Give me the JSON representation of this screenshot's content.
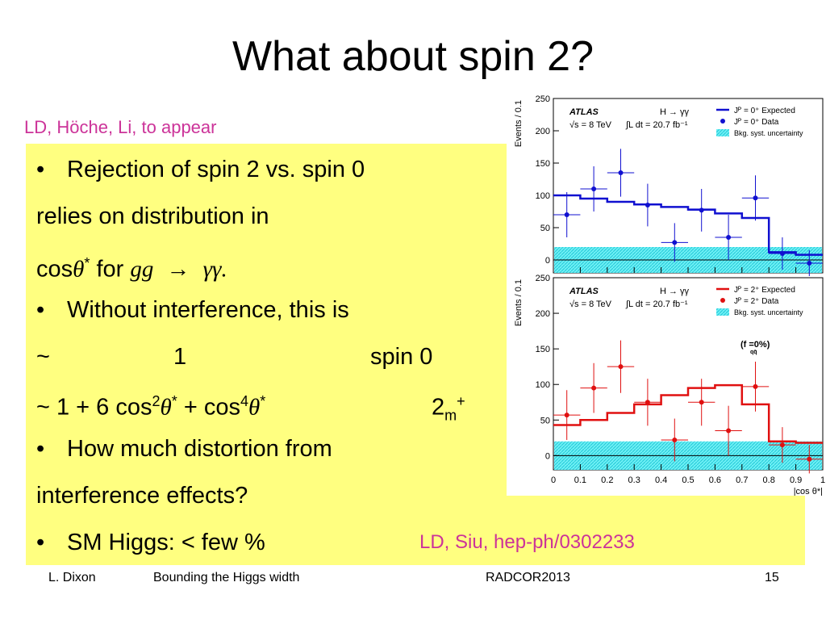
{
  "slide": {
    "title": "What about spin 2?",
    "ref_top": "LD, Höche, Li, to appear",
    "ref_bottom": "LD, Siu, hep-ph/0302233"
  },
  "body": {
    "bullet": "•",
    "l1": "Rejection of spin 2 vs. spin 0",
    "l2": "relies on distribution in",
    "l3_cos": "cos",
    "l3_theta": "θ",
    "l3_star": "*",
    "l3_for": " for ",
    "l3_gg": "gg",
    "l3_arrow": "→",
    "l3_yy": "γγ.",
    "l4": "Without interference, this is",
    "l5_tilde": "~",
    "l5_one": "1",
    "l5_spin0": "spin 0",
    "l6_a": "~ 1 + 6 cos",
    "l6_sup2": "2",
    "l6_theta1": "θ",
    "l6_star1": "*",
    "l6_b": " + cos",
    "l6_sup4": "4",
    "l6_theta2": "θ",
    "l6_star2": "*",
    "l6_2": "2",
    "l6_m": "m",
    "l6_plus": "+",
    "l7": "How much distortion from",
    "l8": "interference effects?",
    "l9": "SM Higgs: < few %"
  },
  "footer": {
    "author": "L. Dixon",
    "talk": "Bounding the Higgs width",
    "conf": "RADCOR2013",
    "page": "15"
  },
  "figure": {
    "ylabel": "Events / 0.1",
    "xlabel": "|cos θ*|",
    "yticks": [
      "0",
      "50",
      "100",
      "150",
      "200",
      "250"
    ],
    "xticks": [
      "0",
      "0.1",
      "0.2",
      "0.3",
      "0.4",
      "0.5",
      "0.6",
      "0.7",
      "0.8",
      "0.9",
      "1"
    ],
    "panels": [
      {
        "atlas": "ATLAS",
        "process": "H → γγ",
        "energy": "√s = 8 TeV",
        "lumi": "∫L dt = 20.7 fb⁻¹",
        "legend": [
          "Jᴾ = 0⁺ Expected",
          "Jᴾ = 0⁺ Data",
          "Bkg. syst. uncertainty"
        ],
        "note": "",
        "color": "#1010d0"
      },
      {
        "atlas": "ATLAS",
        "process": "H → γγ",
        "energy": "√s = 8 TeV",
        "lumi": "∫L dt = 20.7 fb⁻¹",
        "legend": [
          "Jᴾ = 2⁺ Expected",
          "Jᴾ = 2⁺ Data",
          "Bkg. syst. uncertainty"
        ],
        "note": "(f   =0%)",
        "note_sub": "qq̄",
        "color": "#e01010"
      }
    ]
  },
  "chart_data": [
    {
      "type": "line",
      "x": [
        0.05,
        0.15,
        0.25,
        0.35,
        0.45,
        0.55,
        0.65,
        0.75,
        0.85,
        0.95
      ],
      "xlim": [
        0,
        1
      ],
      "ylim": [
        -20,
        250
      ],
      "ylabel": "Events / 0.1",
      "series": [
        {
          "name": "Jᴾ = 0⁺ Expected",
          "values": [
            100,
            95,
            90,
            86,
            82,
            78,
            72,
            65,
            12,
            8
          ]
        },
        {
          "name": "Jᴾ = 0⁺ Data",
          "values": [
            70,
            110,
            135,
            85,
            27,
            77,
            35,
            96,
            10,
            -5
          ],
          "errors": [
            35,
            35,
            37,
            33,
            30,
            33,
            35,
            35,
            25,
            20
          ]
        }
      ],
      "band": {
        "name": "Bkg. syst. uncertainty",
        "low": -20,
        "high": 20
      }
    },
    {
      "type": "line",
      "x": [
        0.05,
        0.15,
        0.25,
        0.35,
        0.45,
        0.55,
        0.65,
        0.75,
        0.85,
        0.95
      ],
      "xlim": [
        0,
        1
      ],
      "ylim": [
        -20,
        250
      ],
      "xlabel": "|cos θ*|",
      "ylabel": "Events / 0.1",
      "series": [
        {
          "name": "Jᴾ = 2⁺ Expected",
          "values": [
            43,
            50,
            60,
            72,
            85,
            95,
            99,
            72,
            20,
            18
          ]
        },
        {
          "name": "Jᴾ = 2⁺ Data",
          "values": [
            57,
            95,
            125,
            75,
            22,
            75,
            35,
            97,
            15,
            -5
          ],
          "errors": [
            35,
            35,
            37,
            33,
            30,
            33,
            35,
            35,
            25,
            20
          ]
        }
      ],
      "band": {
        "name": "Bkg. syst. uncertainty",
        "low": -20,
        "high": 20
      }
    }
  ]
}
